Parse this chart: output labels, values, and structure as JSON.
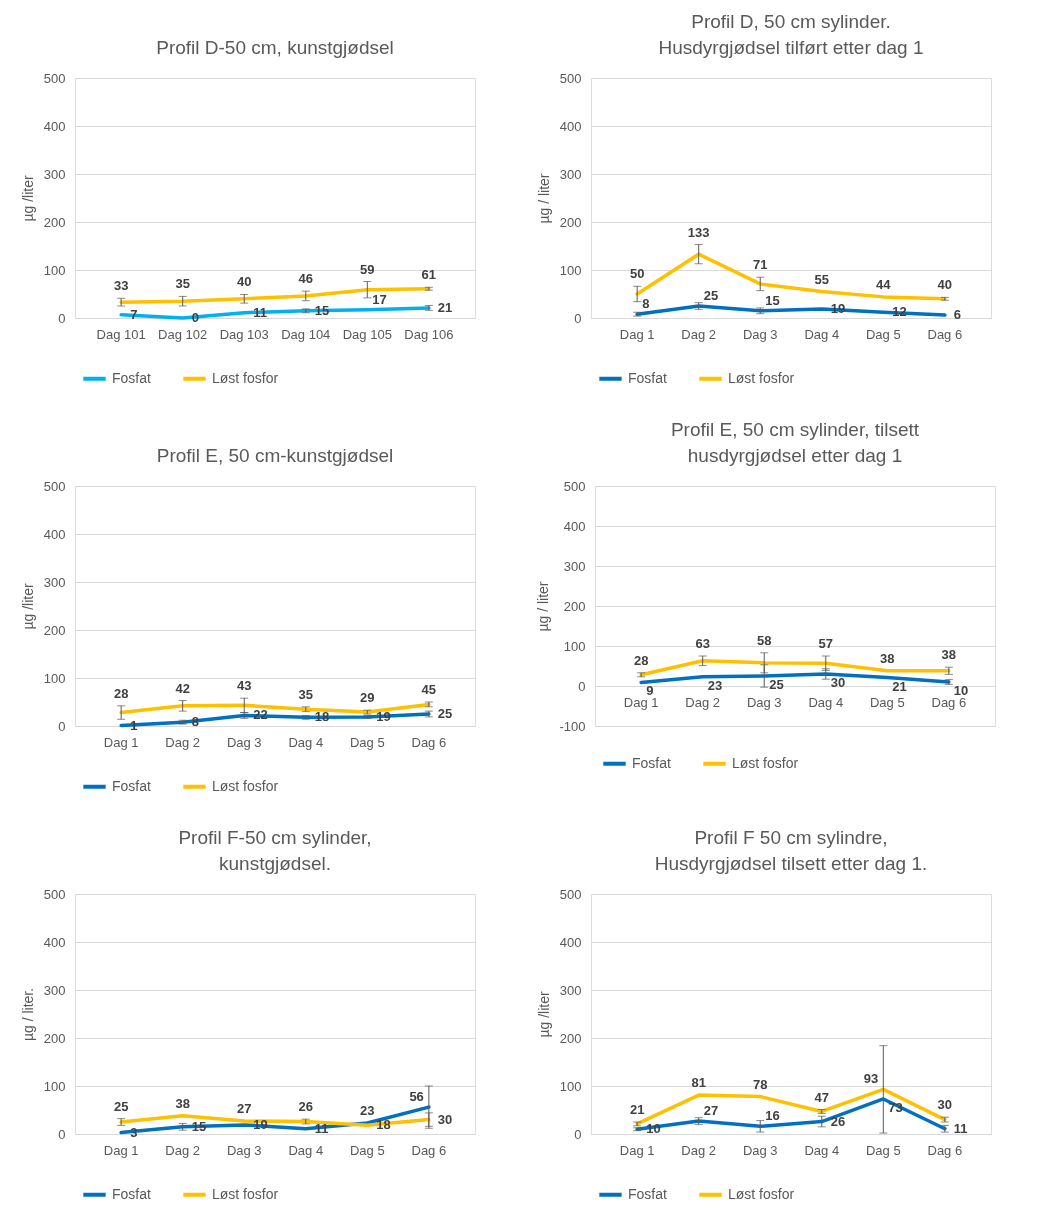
{
  "chart_data": [
    {
      "type": "line",
      "title": "Profil D-50 cm, kunstgjødsel",
      "ylabel": "µg /liter",
      "categories": [
        "Dag 101",
        "Dag 102",
        "Dag 103",
        "Dag 104",
        "Dag 105",
        "Dag 106"
      ],
      "series": [
        {
          "name": "Fosfat",
          "color": "#00b0f0",
          "values": [
            7,
            0,
            11,
            15,
            17,
            21
          ],
          "errors": [
            null,
            null,
            null,
            4,
            null,
            5
          ]
        },
        {
          "name": "Løst fosfor",
          "color": "#ffc000",
          "values": [
            33,
            35,
            40,
            46,
            59,
            61
          ],
          "errors": [
            8,
            10,
            9,
            10,
            17,
            3
          ]
        }
      ],
      "ylim": [
        0,
        500
      ],
      "yticks": [
        0,
        100,
        200,
        300,
        400,
        500
      ],
      "grid": "y",
      "legend": "bottom",
      "data_labels": true
    },
    {
      "type": "line",
      "title": "Profil D, 50 cm sylinder.\nHusdyrgjødsel tilført etter dag 1",
      "ylabel": "µg / liter",
      "categories": [
        "Dag 1",
        "Dag 2",
        "Dag 3",
        "Dag 4",
        "Dag 5",
        "Dag 6"
      ],
      "series": [
        {
          "name": "Fosfat",
          "color": "#0070c0",
          "values": [
            8,
            25,
            15,
            19,
            12,
            6
          ],
          "errors": [
            4,
            7,
            6,
            null,
            null,
            null
          ]
        },
        {
          "name": "Løst fosfor",
          "color": "#ffc000",
          "values": [
            50,
            133,
            71,
            55,
            44,
            40
          ],
          "errors": [
            16,
            20,
            14,
            null,
            null,
            3
          ]
        }
      ],
      "ylim": [
        0,
        500
      ],
      "yticks": [
        0,
        100,
        200,
        300,
        400,
        500
      ],
      "grid": "y",
      "legend": "bottom",
      "data_labels": true
    },
    {
      "type": "line",
      "title": "Profil E, 50 cm-kunstgjødsel",
      "ylabel": "µg /liter",
      "categories": [
        "Dag 1",
        "Dag 2",
        "Dag 3",
        "Dag 4",
        "Dag 5",
        "Dag 6"
      ],
      "series": [
        {
          "name": "Fosfat",
          "color": "#0070c0",
          "values": [
            1,
            8,
            22,
            18,
            19,
            25
          ],
          "errors": [
            null,
            4,
            6,
            4,
            3,
            6
          ]
        },
        {
          "name": "Løst fosfor",
          "color": "#ffc000",
          "values": [
            28,
            42,
            43,
            35,
            29,
            45
          ],
          "errors": [
            14,
            11,
            15,
            5,
            4,
            5
          ]
        }
      ],
      "ylim": [
        0,
        500
      ],
      "yticks": [
        0,
        100,
        200,
        300,
        400,
        500
      ],
      "grid": "y",
      "legend": "bottom",
      "data_labels": true
    },
    {
      "type": "line",
      "title": "Profil E, 50 cm sylinder, tilsett\nhusdyrgjødsel etter dag 1",
      "ylabel": "µg / liter",
      "categories": [
        "Dag 1",
        "Dag 2",
        "Dag 3",
        "Dag 4",
        "Dag 5",
        "Dag 6"
      ],
      "series": [
        {
          "name": "Fosfat",
          "color": "#0070c0",
          "values": [
            9,
            23,
            25,
            30,
            21,
            10
          ],
          "errors": [
            null,
            null,
            28,
            13,
            null,
            6
          ]
        },
        {
          "name": "Løst fosfor",
          "color": "#ffc000",
          "values": [
            28,
            63,
            58,
            57,
            38,
            38
          ],
          "errors": [
            5,
            12,
            25,
            18,
            null,
            9
          ]
        }
      ],
      "ylim": [
        -100,
        500
      ],
      "yticks": [
        -100,
        0,
        100,
        200,
        300,
        400,
        500
      ],
      "grid": "y",
      "legend": "bottom",
      "data_labels": true
    },
    {
      "type": "line",
      "title": "Profil F-50 cm sylinder,\nkunstgjødsel.",
      "ylabel": "µg / liter.",
      "categories": [
        "Dag 1",
        "Dag 2",
        "Dag 3",
        "Dag 4",
        "Dag 5",
        "Dag 6"
      ],
      "series": [
        {
          "name": "Fosfat",
          "color": "#0070c0",
          "values": [
            3,
            15,
            19,
            11,
            23,
            56
          ],
          "errors": [
            null,
            7,
            null,
            null,
            null,
            44
          ]
        },
        {
          "name": "Løst fosfor",
          "color": "#ffc000",
          "values": [
            25,
            38,
            27,
            26,
            18,
            30
          ],
          "errors": [
            7,
            null,
            null,
            5,
            null,
            14
          ]
        }
      ],
      "ylim": [
        0,
        500
      ],
      "yticks": [
        0,
        100,
        200,
        300,
        400,
        500
      ],
      "grid": "y",
      "legend": "bottom",
      "data_labels": true
    },
    {
      "type": "line",
      "title": "Profil F 50 cm sylindre,\nHusdyrgjødsel tilsett etter dag 1.",
      "ylabel": "µg /liter",
      "categories": [
        "Dag 1",
        "Dag 2",
        "Dag 3",
        "Dag 4",
        "Dag 5",
        "Dag 6"
      ],
      "series": [
        {
          "name": "Fosfat",
          "color": "#0070c0",
          "values": [
            10,
            27,
            16,
            26,
            73,
            11
          ],
          "errors": [
            3,
            7,
            12,
            11,
            null,
            7
          ]
        },
        {
          "name": "Løst fosfor",
          "color": "#ffc000",
          "values": [
            21,
            81,
            78,
            47,
            93,
            30
          ],
          "errors": [
            4,
            null,
            null,
            4,
            91,
            5
          ]
        }
      ],
      "ylim": [
        0,
        500
      ],
      "yticks": [
        0,
        100,
        200,
        300,
        400,
        500
      ],
      "grid": "y",
      "legend": "bottom",
      "data_labels": true
    }
  ]
}
